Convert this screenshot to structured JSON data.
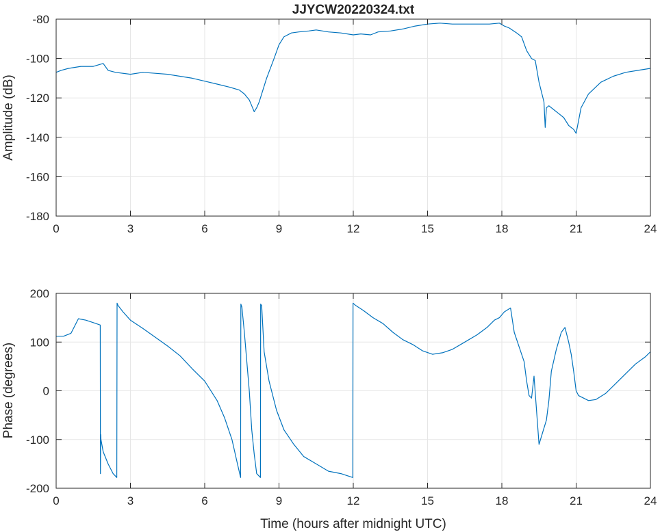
{
  "chart_data": [
    {
      "type": "line",
      "title": "JJYCW20220324.txt",
      "xlabel": "",
      "ylabel": "Amplitude (dB)",
      "xlim": [
        0,
        24
      ],
      "ylim": [
        -180,
        -80
      ],
      "xticks": [
        "0",
        "3",
        "6",
        "9",
        "12",
        "15",
        "18",
        "21",
        "24"
      ],
      "yticks": [
        "-80",
        "-100",
        "-120",
        "-140",
        "-160",
        "-180"
      ],
      "grid": true,
      "color": "#0072bd",
      "series": [
        {
          "x": [
            0,
            0.2,
            0.5,
            1.0,
            1.5,
            1.9,
            2.1,
            2.4,
            3,
            3.5,
            4,
            4.5,
            5,
            5.5,
            6,
            6.5,
            7,
            7.4,
            7.6,
            7.8,
            7.9,
            8.0,
            8.1,
            8.2,
            8.3,
            8.5,
            8.8,
            9.0,
            9.2,
            9.5,
            9.8,
            10.2,
            10.5,
            11,
            11.5,
            12,
            12.3,
            12.7,
            13,
            13.5,
            14,
            14.5,
            15,
            15.5,
            16,
            16.5,
            17,
            17.5,
            17.9,
            18.1,
            18.3,
            18.6,
            18.8,
            19.0,
            19.2,
            19.35,
            19.5,
            19.7,
            19.75,
            19.8,
            19.9,
            20.1,
            20.3,
            20.5,
            20.7,
            20.9,
            21.0,
            21.2,
            21.5,
            22,
            22.5,
            23,
            23.5,
            24
          ],
          "y": [
            -107,
            -106,
            -105,
            -104,
            -104,
            -102.5,
            -106,
            -107,
            -108,
            -107,
            -107.5,
            -108,
            -109,
            -110,
            -111.5,
            -113,
            -114.5,
            -116,
            -118,
            -121,
            -124,
            -127,
            -125,
            -122,
            -118,
            -110,
            -100,
            -93,
            -89,
            -87,
            -86.5,
            -86,
            -85.5,
            -86.5,
            -87,
            -88,
            -87.5,
            -88,
            -86.5,
            -86,
            -85,
            -83.5,
            -82.5,
            -82,
            -82.5,
            -82.5,
            -82.5,
            -82.5,
            -82,
            -83.5,
            -84.5,
            -87,
            -89,
            -96,
            -100,
            -101,
            -112,
            -122,
            -135,
            -125,
            -124,
            -126,
            -128,
            -130,
            -134,
            -136,
            -138,
            -125,
            -118,
            -112,
            -109,
            -107,
            -106,
            -105
          ]
        }
      ]
    },
    {
      "type": "line",
      "title": "",
      "xlabel": "Time (hours after midnight UTC)",
      "ylabel": "Phase (degrees)",
      "xlim": [
        0,
        24
      ],
      "ylim": [
        -200,
        200
      ],
      "xticks": [
        "0",
        "3",
        "6",
        "9",
        "12",
        "15",
        "18",
        "21",
        "24"
      ],
      "yticks": [
        "200",
        "100",
        "0",
        "-100",
        "-200"
      ],
      "grid": true,
      "color": "#0072bd",
      "series": [
        {
          "x": [
            0,
            0.3,
            0.6,
            0.9,
            1.2,
            1.5,
            1.78,
            1.79,
            1.8,
            1.81,
            1.9,
            2.1,
            2.3,
            2.45,
            2.46,
            2.5,
            2.7,
            3.0,
            3.5,
            4.0,
            4.5,
            5.0,
            5.5,
            6.0,
            6.5,
            6.8,
            7.1,
            7.3,
            7.45,
            7.46,
            7.5,
            7.6,
            7.7,
            7.8,
            7.9,
            8.0,
            8.1,
            8.25,
            8.26,
            8.3,
            8.4,
            8.6,
            8.9,
            9.2,
            9.6,
            10.0,
            10.5,
            11.0,
            11.5,
            11.98,
            11.99,
            12.1,
            12.4,
            12.8,
            13.2,
            13.6,
            14.0,
            14.4,
            14.8,
            15.2,
            15.6,
            16.0,
            16.5,
            17.0,
            17.4,
            17.7,
            17.9,
            18.1,
            18.35,
            18.5,
            18.7,
            18.9,
            19.0,
            19.1,
            19.2,
            19.3,
            19.5,
            19.65,
            19.8,
            19.9,
            20.0,
            20.2,
            20.4,
            20.55,
            20.7,
            20.8,
            20.9,
            21.0,
            21.1,
            21.3,
            21.5,
            21.8,
            22.2,
            22.6,
            23.0,
            23.4,
            23.8,
            24.0
          ],
          "y": [
            112,
            112,
            118,
            148,
            145,
            140,
            135,
            -170,
            -90,
            -100,
            -125,
            -150,
            -170,
            -178,
            180,
            175,
            162,
            145,
            128,
            110,
            92,
            72,
            45,
            20,
            -20,
            -55,
            -100,
            -145,
            -178,
            178,
            172,
            120,
            60,
            0,
            -80,
            -130,
            -170,
            -178,
            178,
            175,
            80,
            20,
            -40,
            -80,
            -110,
            -135,
            -150,
            -165,
            -170,
            -178,
            180,
            175,
            165,
            150,
            138,
            120,
            105,
            95,
            82,
            75,
            78,
            85,
            100,
            115,
            130,
            145,
            150,
            162,
            170,
            120,
            90,
            60,
            20,
            -10,
            -15,
            30,
            -110,
            -85,
            -60,
            -20,
            40,
            85,
            120,
            130,
            100,
            75,
            40,
            0,
            -10,
            -15,
            -20,
            -18,
            -5,
            15,
            35,
            55,
            70,
            80
          ]
        }
      ]
    }
  ]
}
